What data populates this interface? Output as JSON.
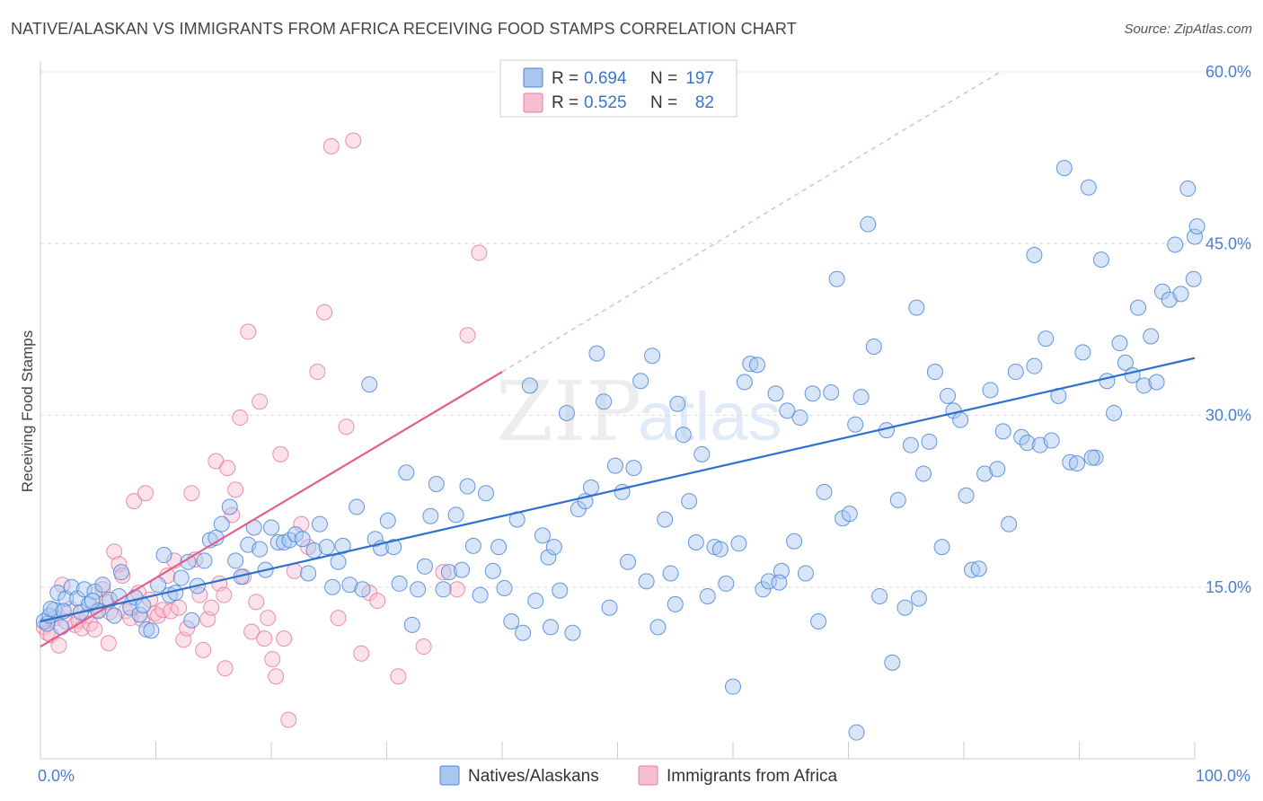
{
  "title": "NATIVE/ALASKAN VS IMMIGRANTS FROM AFRICA RECEIVING FOOD STAMPS CORRELATION CHART",
  "source": "Source: ZipAtlas.com",
  "watermark": {
    "zip": "ZIP",
    "atlas": "atlas"
  },
  "colors": {
    "blue": "#4a86d8",
    "blue_fill": "#a9c6ef",
    "pink": "#e87ba0",
    "pink_fill": "#f6bfd1",
    "axis_label": "#4a7fd0",
    "grid": "#dddddd"
  },
  "legend": {
    "row1": {
      "r_label": "R =",
      "r_value": "0.694",
      "n_label": "N =",
      "n_value": "197"
    },
    "row2": {
      "r_label": "R =",
      "r_value": "0.525",
      "n_label": "N =",
      "n_value": "82"
    }
  },
  "bottom_legend": {
    "series1": "Natives/Alaskans",
    "series2": "Immigrants from Africa"
  },
  "chart_data": {
    "type": "scatter",
    "title": "NATIVE/ALASKAN VS IMMIGRANTS FROM AFRICA RECEIVING FOOD STAMPS CORRELATION CHART",
    "xlabel": "",
    "ylabel": "Receiving Food Stamps",
    "xlim": [
      0,
      100
    ],
    "ylim": [
      0,
      60
    ],
    "x_tick_labels": [
      "0.0%",
      "100.0%"
    ],
    "y_ticks": [
      15,
      30,
      45,
      60
    ],
    "y_tick_labels": [
      "15.0%",
      "30.0%",
      "45.0%",
      "60.0%"
    ],
    "grid": true,
    "legend_position": "top-center",
    "series": [
      {
        "name": "Natives/Alaskans",
        "color": "#4a86d8",
        "R": 0.694,
        "N": 197,
        "trend": {
          "x": [
            0,
            100
          ],
          "y": [
            12.0,
            35.0
          ]
        },
        "points": [
          [
            0.3,
            12.0
          ],
          [
            0.6,
            11.8
          ],
          [
            0.8,
            12.5
          ],
          [
            1.2,
            13.0
          ],
          [
            1.5,
            14.5
          ],
          [
            1.8,
            11.5
          ],
          [
            2.2,
            14.0
          ],
          [
            2.7,
            15.0
          ],
          [
            3.2,
            14.0
          ],
          [
            3.5,
            12.8
          ],
          [
            3.8,
            14.8
          ],
          [
            4.2,
            13.5
          ],
          [
            4.7,
            14.6
          ],
          [
            5.0,
            12.9
          ],
          [
            5.4,
            15.2
          ],
          [
            6.0,
            13.9
          ],
          [
            6.4,
            12.5
          ],
          [
            7.0,
            16.3
          ],
          [
            7.8,
            13.2
          ],
          [
            8.2,
            14.1
          ],
          [
            8.6,
            12.6
          ],
          [
            9.2,
            11.3
          ],
          [
            9.6,
            11.2
          ],
          [
            10.2,
            15.2
          ],
          [
            10.7,
            17.8
          ],
          [
            11.2,
            14.3
          ],
          [
            11.7,
            14.5
          ],
          [
            12.2,
            15.8
          ],
          [
            12.8,
            17.2
          ],
          [
            13.1,
            12.1
          ],
          [
            13.6,
            15.1
          ],
          [
            14.2,
            17.3
          ],
          [
            14.7,
            19.1
          ],
          [
            15.2,
            19.3
          ],
          [
            15.7,
            20.5
          ],
          [
            16.4,
            22.0
          ],
          [
            16.9,
            17.3
          ],
          [
            17.4,
            15.9
          ],
          [
            18.0,
            18.7
          ],
          [
            18.5,
            20.2
          ],
          [
            19.0,
            18.3
          ],
          [
            19.5,
            16.5
          ],
          [
            20.0,
            20.2
          ],
          [
            20.6,
            18.9
          ],
          [
            21.1,
            18.9
          ],
          [
            21.6,
            19.1
          ],
          [
            22.1,
            19.6
          ],
          [
            22.7,
            19.2
          ],
          [
            23.2,
            16.2
          ],
          [
            23.7,
            18.2
          ],
          [
            24.2,
            20.5
          ],
          [
            24.8,
            18.5
          ],
          [
            25.3,
            15.0
          ],
          [
            25.8,
            17.2
          ],
          [
            26.2,
            18.6
          ],
          [
            26.8,
            15.2
          ],
          [
            27.4,
            22.0
          ],
          [
            27.9,
            14.8
          ],
          [
            28.5,
            32.7
          ],
          [
            29.0,
            19.2
          ],
          [
            29.5,
            18.4
          ],
          [
            30.1,
            20.8
          ],
          [
            30.6,
            18.5
          ],
          [
            31.1,
            15.3
          ],
          [
            31.7,
            25.0
          ],
          [
            32.2,
            11.7
          ],
          [
            32.7,
            14.8
          ],
          [
            33.3,
            16.8
          ],
          [
            33.8,
            21.2
          ],
          [
            34.3,
            24.0
          ],
          [
            34.9,
            14.8
          ],
          [
            35.4,
            16.3
          ],
          [
            36.0,
            21.3
          ],
          [
            36.5,
            16.5
          ],
          [
            37.0,
            23.8
          ],
          [
            37.5,
            18.6
          ],
          [
            38.1,
            14.3
          ],
          [
            38.6,
            23.2
          ],
          [
            39.2,
            16.4
          ],
          [
            39.7,
            18.5
          ],
          [
            40.2,
            14.9
          ],
          [
            40.8,
            12.0
          ],
          [
            41.3,
            20.9
          ],
          [
            41.8,
            11.0
          ],
          [
            42.4,
            32.6
          ],
          [
            42.9,
            13.8
          ],
          [
            43.5,
            19.5
          ],
          [
            44.0,
            17.6
          ],
          [
            44.5,
            18.5
          ],
          [
            45.0,
            14.7
          ],
          [
            45.6,
            30.2
          ],
          [
            46.1,
            11.0
          ],
          [
            46.6,
            21.8
          ],
          [
            47.2,
            22.5
          ],
          [
            47.7,
            23.7
          ],
          [
            48.2,
            35.4
          ],
          [
            48.8,
            31.2
          ],
          [
            49.3,
            13.2
          ],
          [
            49.8,
            25.6
          ],
          [
            50.4,
            23.3
          ],
          [
            50.9,
            17.2
          ],
          [
            51.4,
            25.4
          ],
          [
            52.0,
            33.0
          ],
          [
            52.5,
            15.5
          ],
          [
            53.0,
            35.2
          ],
          [
            53.5,
            11.5
          ],
          [
            54.1,
            20.9
          ],
          [
            54.6,
            16.2
          ],
          [
            55.2,
            31.0
          ],
          [
            55.7,
            28.3
          ],
          [
            56.2,
            22.5
          ],
          [
            56.8,
            18.9
          ],
          [
            57.3,
            26.6
          ],
          [
            57.8,
            14.2
          ],
          [
            58.4,
            18.5
          ],
          [
            58.9,
            18.3
          ],
          [
            59.4,
            15.3
          ],
          [
            60.0,
            6.3
          ],
          [
            60.5,
            18.8
          ],
          [
            61.0,
            32.9
          ],
          [
            61.5,
            34.5
          ],
          [
            62.1,
            34.4
          ],
          [
            62.6,
            14.8
          ],
          [
            63.1,
            15.5
          ],
          [
            63.7,
            31.9
          ],
          [
            64.2,
            16.4
          ],
          [
            64.7,
            30.4
          ],
          [
            65.3,
            19.0
          ],
          [
            65.8,
            29.8
          ],
          [
            66.3,
            16.2
          ],
          [
            66.9,
            31.9
          ],
          [
            67.4,
            12.0
          ],
          [
            67.9,
            23.3
          ],
          [
            68.5,
            32.0
          ],
          [
            69.0,
            41.9
          ],
          [
            69.5,
            21.0
          ],
          [
            70.1,
            21.4
          ],
          [
            70.6,
            29.2
          ],
          [
            71.1,
            31.6
          ],
          [
            71.7,
            46.7
          ],
          [
            72.2,
            36.0
          ],
          [
            72.7,
            14.2
          ],
          [
            73.3,
            28.7
          ],
          [
            73.8,
            8.4
          ],
          [
            74.3,
            22.6
          ],
          [
            74.9,
            13.2
          ],
          [
            75.4,
            27.4
          ],
          [
            75.9,
            39.4
          ],
          [
            76.5,
            24.9
          ],
          [
            77.0,
            27.7
          ],
          [
            77.5,
            33.8
          ],
          [
            78.1,
            18.5
          ],
          [
            78.6,
            31.7
          ],
          [
            79.1,
            30.4
          ],
          [
            79.7,
            29.6
          ],
          [
            80.2,
            23.0
          ],
          [
            80.7,
            16.5
          ],
          [
            81.3,
            16.6
          ],
          [
            81.8,
            24.9
          ],
          [
            82.3,
            32.2
          ],
          [
            82.9,
            25.3
          ],
          [
            83.4,
            28.6
          ],
          [
            83.9,
            20.5
          ],
          [
            84.5,
            33.8
          ],
          [
            85.0,
            28.1
          ],
          [
            85.5,
            27.6
          ],
          [
            86.1,
            34.3
          ],
          [
            86.6,
            27.4
          ],
          [
            87.1,
            36.7
          ],
          [
            87.6,
            27.8
          ],
          [
            88.2,
            31.7
          ],
          [
            88.7,
            51.6
          ],
          [
            89.2,
            25.9
          ],
          [
            89.8,
            25.8
          ],
          [
            90.3,
            35.5
          ],
          [
            90.8,
            49.9
          ],
          [
            91.4,
            26.3
          ],
          [
            91.9,
            43.6
          ],
          [
            92.4,
            33.0
          ],
          [
            93.0,
            30.2
          ],
          [
            93.5,
            36.3
          ],
          [
            94.0,
            34.6
          ],
          [
            94.6,
            33.5
          ],
          [
            95.1,
            39.4
          ],
          [
            95.6,
            32.6
          ],
          [
            96.2,
            36.9
          ],
          [
            96.7,
            32.9
          ],
          [
            97.2,
            40.8
          ],
          [
            97.8,
            40.1
          ],
          [
            98.3,
            44.9
          ],
          [
            98.8,
            40.6
          ],
          [
            99.4,
            49.8
          ],
          [
            99.9,
            41.9
          ],
          [
            100.0,
            45.6
          ],
          [
            100.2,
            46.5
          ],
          [
            0.9,
            13.1
          ],
          [
            2.0,
            12.9
          ],
          [
            4.5,
            13.8
          ],
          [
            6.8,
            14.2
          ],
          [
            8.9,
            13.4
          ],
          [
            55.0,
            13.5
          ],
          [
            70.7,
            2.3
          ],
          [
            44.2,
            11.5
          ],
          [
            86.1,
            44.0
          ],
          [
            76.1,
            14.0
          ],
          [
            64.0,
            15.4
          ],
          [
            91.1,
            26.3
          ]
        ]
      },
      {
        "name": "Immigrants from Africa",
        "color": "#e87ba0",
        "R": 0.525,
        "N": 82,
        "trend_solid": {
          "x": [
            0,
            40
          ],
          "y": [
            9.8,
            33.8
          ]
        },
        "trend_dashed": {
          "x": [
            40,
            83
          ],
          "y": [
            33.8,
            59.9
          ]
        },
        "points": [
          [
            0.3,
            11.5
          ],
          [
            0.6,
            11.0
          ],
          [
            0.9,
            10.8
          ],
          [
            1.3,
            12.3
          ],
          [
            1.6,
            9.9
          ],
          [
            1.9,
            15.2
          ],
          [
            2.2,
            12.0
          ],
          [
            2.6,
            13.1
          ],
          [
            3.0,
            11.7
          ],
          [
            3.3,
            12.1
          ],
          [
            3.6,
            11.4
          ],
          [
            4.0,
            12.5
          ],
          [
            4.3,
            11.8
          ],
          [
            4.7,
            11.3
          ],
          [
            5.0,
            13.0
          ],
          [
            5.4,
            14.8
          ],
          [
            5.7,
            13.7
          ],
          [
            6.0,
            12.8
          ],
          [
            6.4,
            18.1
          ],
          [
            6.8,
            17.0
          ],
          [
            7.1,
            16.0
          ],
          [
            7.4,
            12.9
          ],
          [
            7.8,
            12.3
          ],
          [
            8.1,
            22.5
          ],
          [
            8.5,
            14.5
          ],
          [
            8.8,
            12.2
          ],
          [
            9.1,
            23.2
          ],
          [
            9.5,
            13.9
          ],
          [
            9.9,
            12.7
          ],
          [
            10.2,
            12.5
          ],
          [
            10.6,
            13.0
          ],
          [
            11.0,
            16.0
          ],
          [
            11.3,
            12.9
          ],
          [
            11.6,
            17.3
          ],
          [
            12.0,
            13.2
          ],
          [
            12.4,
            10.4
          ],
          [
            12.7,
            11.4
          ],
          [
            13.1,
            23.2
          ],
          [
            13.4,
            17.4
          ],
          [
            13.8,
            14.3
          ],
          [
            14.1,
            9.5
          ],
          [
            14.5,
            12.2
          ],
          [
            14.8,
            13.2
          ],
          [
            15.2,
            26.0
          ],
          [
            15.5,
            15.3
          ],
          [
            15.9,
            14.3
          ],
          [
            16.2,
            25.4
          ],
          [
            16.6,
            21.3
          ],
          [
            16.9,
            23.5
          ],
          [
            17.3,
            29.8
          ],
          [
            17.6,
            15.9
          ],
          [
            18.0,
            37.3
          ],
          [
            18.3,
            11.1
          ],
          [
            18.7,
            13.7
          ],
          [
            19.0,
            31.2
          ],
          [
            19.4,
            10.5
          ],
          [
            19.7,
            12.3
          ],
          [
            20.1,
            8.7
          ],
          [
            20.4,
            7.2
          ],
          [
            20.8,
            26.6
          ],
          [
            21.1,
            10.5
          ],
          [
            21.5,
            3.4
          ],
          [
            22.0,
            16.4
          ],
          [
            22.6,
            20.5
          ],
          [
            23.2,
            18.5
          ],
          [
            24.0,
            33.8
          ],
          [
            24.6,
            39.0
          ],
          [
            25.2,
            53.5
          ],
          [
            25.8,
            12.3
          ],
          [
            26.5,
            29.0
          ],
          [
            27.1,
            54.0
          ],
          [
            27.8,
            9.2
          ],
          [
            28.5,
            14.5
          ],
          [
            29.2,
            13.8
          ],
          [
            31.0,
            7.2
          ],
          [
            33.2,
            9.8
          ],
          [
            34.9,
            16.3
          ],
          [
            36.1,
            14.8
          ],
          [
            37.0,
            37.0
          ],
          [
            38.0,
            44.2
          ],
          [
            16.0,
            7.9
          ],
          [
            5.9,
            10.1
          ]
        ]
      }
    ]
  }
}
